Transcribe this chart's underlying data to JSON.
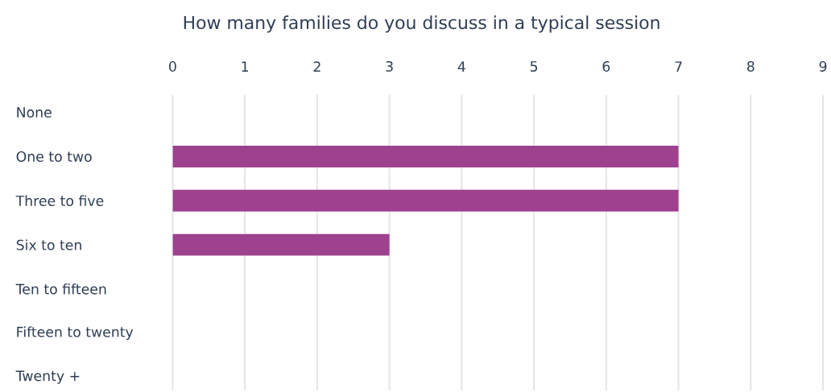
{
  "chart_data": {
    "type": "bar",
    "orientation": "horizontal",
    "title": "How many families do you discuss in a typical session",
    "categories": [
      "None",
      "One to two",
      "Three to five",
      "Six to ten",
      "Ten to fifteen",
      "Fifteen to twenty",
      "Twenty +"
    ],
    "values": [
      0,
      7,
      7,
      3,
      0,
      0,
      0
    ],
    "color": "#9e418e",
    "xlim": [
      0,
      9
    ],
    "xticks": [
      0,
      1,
      2,
      3,
      4,
      5,
      6,
      7,
      8,
      9
    ],
    "grid": "x"
  }
}
